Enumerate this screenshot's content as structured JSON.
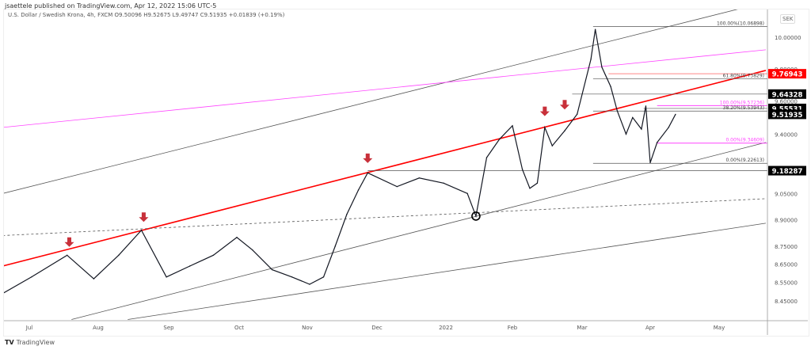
{
  "header": {
    "published": "jsaettele published on TradingView.com, Apr 12, 2022 15:06 UTC-5",
    "legend": "U.S. Dollar / Swedish Krona, 4h, FXCM  O9.50096  H9.52675  L9.49747  C9.51935  +0.01839 (+0.19%)"
  },
  "currency_button": "SEK",
  "watermark": "TradingView",
  "colors": {
    "price": "#131722",
    "red": "#ff0000",
    "pink": "#ff44ff",
    "arrow": "#c8303a",
    "gray": "#555555",
    "label_bg": "#000000"
  },
  "chart_data": {
    "type": "line",
    "title": "U.S. Dollar / Swedish Krona, 4h, FXCM",
    "y_scale": "log",
    "ylim": [
      8.4,
      10.2
    ],
    "xlim": [
      "2021-06-18",
      "2022-05-23"
    ],
    "grid": false,
    "x_ticks": [
      {
        "label": "Jul",
        "date": "2021-07-01"
      },
      {
        "label": "Aug",
        "date": "2021-08-01"
      },
      {
        "label": "Sep",
        "date": "2021-09-01"
      },
      {
        "label": "Oct",
        "date": "2021-10-01"
      },
      {
        "label": "Nov",
        "date": "2021-11-01"
      },
      {
        "label": "Dec",
        "date": "2021-12-01"
      },
      {
        "label": "2022",
        "date": "2022-01-01"
      },
      {
        "label": "Feb",
        "date": "2022-02-01"
      },
      {
        "label": "Mar",
        "date": "2022-03-01"
      },
      {
        "label": "Apr",
        "date": "2022-04-01"
      },
      {
        "label": "May",
        "date": "2022-05-01"
      }
    ],
    "y_ticks": [
      "10.00000",
      "9.80000",
      "9.60000",
      "9.40000",
      "9.05000",
      "8.90000",
      "8.75000",
      "8.65000",
      "8.55000",
      "8.45000"
    ],
    "series": [
      {
        "x": [
          "2021-06-19",
          "2021-07-02",
          "2021-07-18",
          "2021-07-30",
          "2021-08-10",
          "2021-08-20",
          "2021-08-31",
          "2021-09-10",
          "2021-09-20",
          "2021-09-30",
          "2021-10-07",
          "2021-10-16",
          "2021-10-25",
          "2021-11-02",
          "2021-11-08",
          "2021-11-13",
          "2021-11-18",
          "2021-11-23",
          "2021-11-27",
          "2021-12-10",
          "2021-12-20",
          "2021-12-31",
          "2022-01-11",
          "2022-01-15",
          "2022-01-20",
          "2022-01-26",
          "2022-02-01",
          "2022-02-05",
          "2022-02-08",
          "2022-02-11",
          "2022-02-14",
          "2022-02-17",
          "2022-02-22",
          "2022-02-27",
          "2022-03-05",
          "2022-03-07",
          "2022-03-10",
          "2022-03-14",
          "2022-03-17",
          "2022-03-21",
          "2022-03-24",
          "2022-03-28",
          "2022-03-30",
          "2022-04-01",
          "2022-04-04",
          "2022-04-09",
          "2022-04-12"
        ],
        "y": [
          8.49,
          8.58,
          8.7,
          8.57,
          8.7,
          8.84,
          8.58,
          8.64,
          8.7,
          8.8,
          8.73,
          8.62,
          8.58,
          8.54,
          8.58,
          8.75,
          8.93,
          9.07,
          9.17,
          9.09,
          9.14,
          9.11,
          9.05,
          8.92,
          9.26,
          9.37,
          9.45,
          9.19,
          9.08,
          9.11,
          9.44,
          9.33,
          9.42,
          9.52,
          9.86,
          10.05,
          9.81,
          9.69,
          9.54,
          9.4,
          9.5,
          9.43,
          9.57,
          9.23,
          9.35,
          9.44,
          9.519
        ]
      }
    ],
    "trendlines": [
      {
        "color": "gray",
        "from": [
          "2021-06-19",
          9.05
        ],
        "to": [
          "2022-05-12",
          10.19
        ]
      },
      {
        "color": "pink",
        "from": [
          "2021-06-19",
          9.44
        ],
        "to": [
          "2022-05-22",
          9.92
        ]
      },
      {
        "color": "red",
        "from": [
          "2021-06-19",
          8.64
        ],
        "to": [
          "2022-05-22",
          9.79
        ]
      },
      {
        "color": "gray",
        "dashed": true,
        "from": [
          "2021-06-19",
          8.81
        ],
        "to": [
          "2022-05-22",
          9.02
        ]
      },
      {
        "color": "gray",
        "from": [
          "2021-07-20",
          8.35
        ],
        "to": [
          "2022-05-22",
          9.35
        ]
      },
      {
        "color": "gray",
        "from": [
          "2021-08-14",
          8.35
        ],
        "to": [
          "2022-05-22",
          8.88
        ]
      }
    ],
    "levels": [
      {
        "price": 10.06898,
        "from": "2022-03-06",
        "color": "gray",
        "label": "100.00%(10.06898)"
      },
      {
        "price": 9.76943,
        "from": "2022-03-13",
        "color": "red"
      },
      {
        "price": 9.73829,
        "from": "2022-03-06",
        "color": "gray",
        "label": "61.80%(9.73829)"
      },
      {
        "price": 9.64328,
        "from": "2022-02-25",
        "color": "gray"
      },
      {
        "price": 9.57236,
        "from": "2022-04-04",
        "color": "pink",
        "label": "100.00%(9.57236)"
      },
      {
        "price": 9.55531,
        "from": "2022-03-29",
        "color": "gray"
      },
      {
        "price": 9.53943,
        "from": "2022-03-06",
        "color": "gray",
        "label": "38.20%(9.53943)"
      },
      {
        "price": 9.34609,
        "from": "2022-04-04",
        "color": "pink",
        "label": "0.00%(9.34609)"
      },
      {
        "price": 9.22613,
        "from": "2022-03-06",
        "color": "gray",
        "label": "0.00%(9.22613)"
      },
      {
        "price": 9.18287,
        "from": "2021-11-27",
        "color": "gray"
      }
    ],
    "price_labels": [
      {
        "text": "9.76943",
        "price": 9.76943,
        "bg": "red"
      },
      {
        "text": "9.64328",
        "price": 9.64328,
        "bg": "black"
      },
      {
        "text": "9.55531",
        "price": 9.55531,
        "bg": "black"
      },
      {
        "text": "9.51935",
        "price": 9.51935,
        "bg": "black"
      },
      {
        "text": "9.18287",
        "price": 9.18287,
        "bg": "black"
      }
    ],
    "arrows": [
      [
        "2021-07-19",
        8.72
      ],
      [
        "2021-08-21",
        8.86
      ],
      [
        "2021-11-27",
        9.2
      ],
      [
        "2022-02-14",
        9.48
      ],
      [
        "2022-02-22",
        9.52
      ]
    ],
    "circle": [
      "2022-01-15",
      8.92
    ]
  }
}
